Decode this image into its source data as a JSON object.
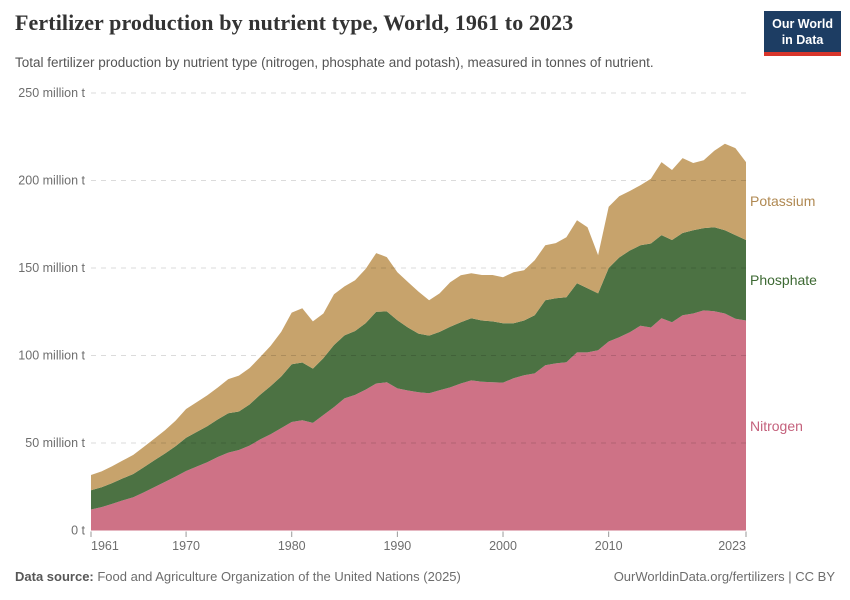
{
  "header": {
    "title": "Fertilizer production by nutrient type, World, 1961 to 2023",
    "subtitle": "Total fertilizer production by nutrient type (nitrogen, phosphate and potash), measured in tonnes of nutrient.",
    "logo": {
      "line1": "Our World",
      "line2": "in Data",
      "bg_color": "#1d3d63",
      "bar_color": "#d8352b"
    }
  },
  "footer": {
    "source_label": "Data source:",
    "source_text": " Food and Agriculture Organization of the United Nations (2025)",
    "credit": "OurWorldinData.org/fertilizers | CC BY"
  },
  "chart_data": {
    "type": "area",
    "stacked": true,
    "title": "Fertilizer production by nutrient type, World, 1961 to 2023",
    "unit": "million tonnes of nutrient",
    "ylim": [
      0,
      250
    ],
    "grid": true,
    "legend_position": "right",
    "x_ticks": [
      1961,
      1970,
      1980,
      1990,
      2000,
      2010,
      2023
    ],
    "y_ticks": [
      {
        "value": 0,
        "label": "0 t"
      },
      {
        "value": 50,
        "label": "50 million t"
      },
      {
        "value": 100,
        "label": "100 million t"
      },
      {
        "value": 150,
        "label": "150 million t"
      },
      {
        "value": 200,
        "label": "200 million t"
      },
      {
        "value": 250,
        "label": "250 million t"
      }
    ],
    "years": [
      1961,
      1962,
      1963,
      1964,
      1965,
      1966,
      1967,
      1968,
      1969,
      1970,
      1971,
      1972,
      1973,
      1974,
      1975,
      1976,
      1977,
      1978,
      1979,
      1980,
      1981,
      1982,
      1983,
      1984,
      1985,
      1986,
      1987,
      1988,
      1989,
      1990,
      1991,
      1992,
      1993,
      1994,
      1995,
      1996,
      1997,
      1998,
      1999,
      2000,
      2001,
      2002,
      2003,
      2004,
      2005,
      2006,
      2007,
      2008,
      2009,
      2010,
      2011,
      2012,
      2013,
      2014,
      2015,
      2016,
      2017,
      2018,
      2019,
      2020,
      2021,
      2022,
      2023
    ],
    "series": [
      {
        "name": "Nitrogen",
        "color": "#CE7286",
        "label_color": "#c4617c",
        "values": [
          12,
          13.4,
          15.2,
          17.2,
          19,
          21.8,
          24.8,
          27.8,
          30.8,
          34,
          36.5,
          39,
          42,
          44.5,
          46,
          48.5,
          52,
          55,
          58.5,
          62,
          63,
          61.5,
          66,
          70.5,
          75.5,
          77.5,
          80.5,
          84,
          84.7,
          81.2,
          80,
          79,
          78.4,
          80.1,
          81.8,
          84,
          85.8,
          85,
          84.7,
          84.5,
          87,
          88.7,
          89.8,
          94.4,
          95.5,
          96.1,
          101.8,
          101.8,
          103,
          108,
          110.4,
          113.3,
          117,
          116,
          121.3,
          119,
          123,
          124,
          125.8,
          125.3,
          124,
          121,
          120
        ]
      },
      {
        "name": "Phosphate",
        "color": "#4C7243",
        "label_color": "#3d6933",
        "values": [
          11,
          11.3,
          11.9,
          12.6,
          13.3,
          14.3,
          15.3,
          16.2,
          17.3,
          19,
          19.8,
          20.6,
          21.5,
          22.5,
          22,
          23.5,
          25.5,
          27.5,
          29.5,
          33,
          33,
          31,
          32.5,
          35.5,
          36,
          36.5,
          38,
          41,
          40.5,
          38.9,
          36,
          33.5,
          33,
          33.4,
          34.6,
          35,
          35.5,
          35,
          34.8,
          33.9,
          31.4,
          31.3,
          33.2,
          37.2,
          37.2,
          37.2,
          39.5,
          36.6,
          32.5,
          42,
          45.6,
          46.7,
          46,
          48,
          47.5,
          47,
          47,
          47.6,
          47,
          48,
          47.6,
          47.8,
          46
        ]
      },
      {
        "name": "Potassium",
        "color": "#C7A36C",
        "label_color": "#b08952",
        "values": [
          8.7,
          9.1,
          9.6,
          10.2,
          10.9,
          11.7,
          12.4,
          13.3,
          14.6,
          16.4,
          17,
          17.6,
          18.2,
          19.5,
          20.5,
          20.8,
          21.5,
          23,
          25.5,
          29.5,
          31,
          27,
          25.5,
          29,
          28,
          29,
          31,
          33.5,
          31,
          27.5,
          26,
          24,
          20.2,
          22,
          25.5,
          26.9,
          25.7,
          26,
          26.5,
          26.3,
          29.2,
          28.7,
          31.4,
          31.4,
          31.5,
          34.3,
          36,
          34.9,
          21.8,
          35,
          35,
          34,
          34.3,
          37,
          41.7,
          40,
          42.8,
          38.4,
          38.8,
          43.7,
          49.4,
          49.7,
          44.5
        ]
      }
    ]
  }
}
